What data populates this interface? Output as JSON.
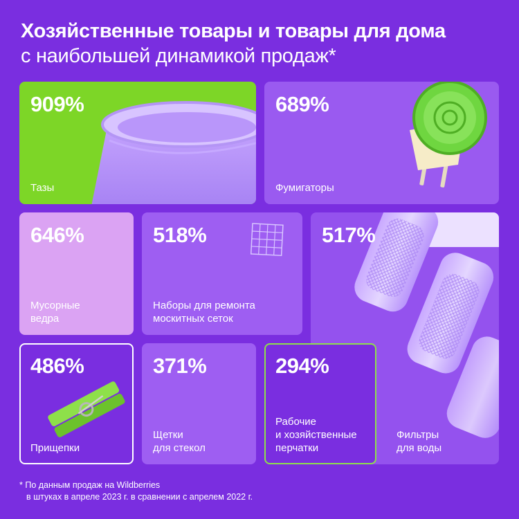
{
  "header": {
    "title": "Хозяйственные товары и товары для дома",
    "subtitle": "с наибольшей динамикой продаж*"
  },
  "cards": [
    {
      "percent": "909%",
      "label": [
        "Тазы"
      ],
      "bg": "#7dd627",
      "icon": "basin-image"
    },
    {
      "percent": "689%",
      "label": [
        "Фумигаторы"
      ],
      "bg": "#9a5af0",
      "icon": "fumigator-image"
    },
    {
      "percent": "646%",
      "label": [
        "Мусорные",
        "ведра"
      ],
      "bg": "#dba3f3"
    },
    {
      "percent": "518%",
      "label": [
        "Наборы для ремонта",
        "москитных сеток"
      ],
      "bg": "#9e5ef2",
      "icon": "mesh-grid-icon"
    },
    {
      "percent": "517%",
      "label": [
        "Фильтры",
        "для воды"
      ],
      "bg": "#9452ee",
      "icon": "water-filters-image"
    },
    {
      "percent": "486%",
      "label": [
        "Прищепки"
      ],
      "bg": "#7a2ee0",
      "icon": "clothespin-image"
    },
    {
      "percent": "371%",
      "label": [
        "Щетки",
        "для стекол"
      ],
      "bg": "#9e5ef2"
    },
    {
      "percent": "294%",
      "label": [
        "Рабочие",
        "и хозяйственные",
        "перчатки"
      ],
      "bg": "#7a2ee0"
    }
  ],
  "footnote": {
    "line1": "* По данным продаж на Wildberries",
    "line2": "в штуках в апреле 2023 г. в сравнении с апрелем 2022 г."
  }
}
